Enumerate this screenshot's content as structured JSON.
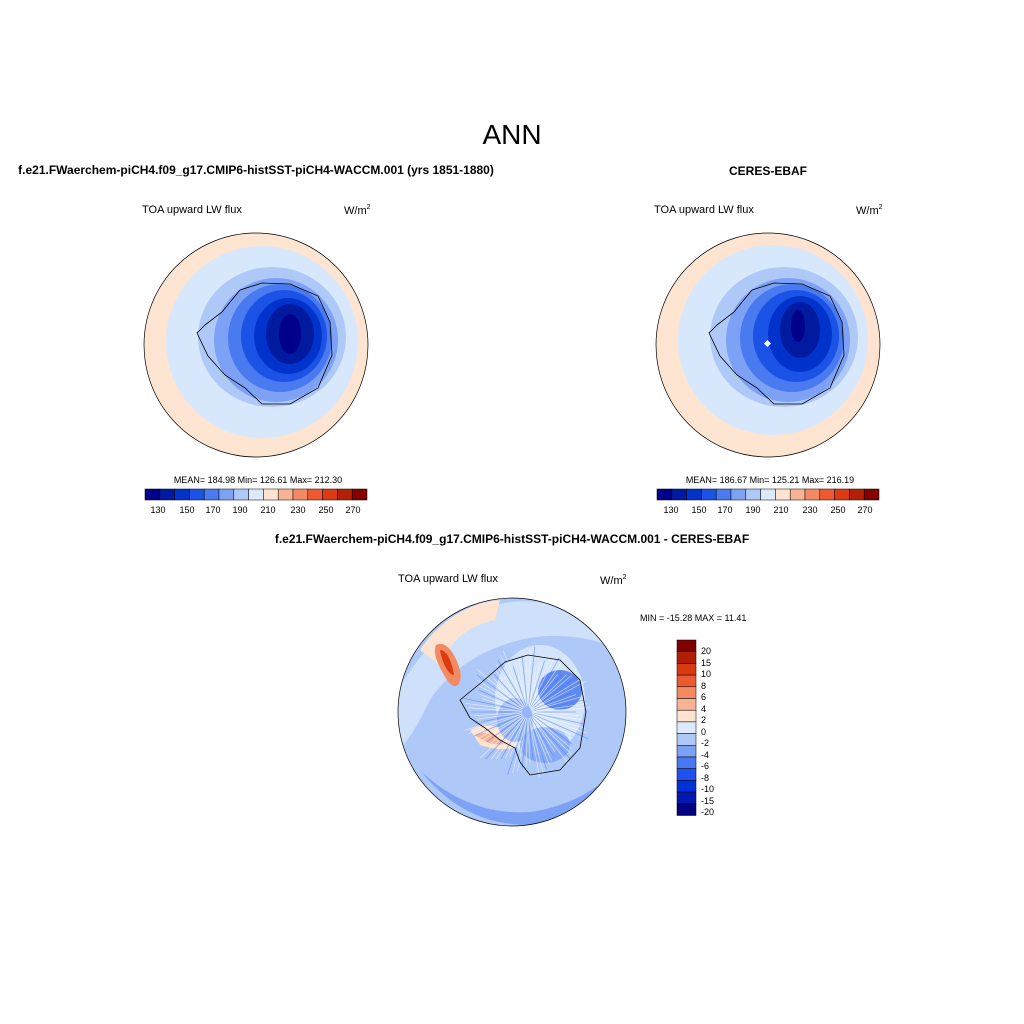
{
  "page": {
    "season": "ANN"
  },
  "colors": {
    "diverging_scale": [
      "#00008b",
      "#001aa0",
      "#0033cc",
      "#1a53e6",
      "#4a7af0",
      "#7da2f5",
      "#aec8f8",
      "#dbe9fc",
      "#fde3d0",
      "#f8b395",
      "#f38a62",
      "#ee5a30",
      "#dc3a12",
      "#b51f05",
      "#820000"
    ],
    "diff_scale": [
      "#000080",
      "#0018b0",
      "#0030d8",
      "#2050f0",
      "#4878f2",
      "#7ca0f6",
      "#aec8f8",
      "#ddeafc",
      "#fde3d0",
      "#f8b395",
      "#f38a62",
      "#ee5a30",
      "#d93a10",
      "#b01e04",
      "#800000"
    ],
    "coastline": "#000000",
    "ocean_light": "#cfe4fc",
    "ocean_warm": "#fde5d2"
  },
  "panels": {
    "model": {
      "title": "f.e21.FWaerchem-piCH4.f09_g17.CMIP6-histSST-piCH4-WACCM.001 (yrs 1851-1880)",
      "variable": "TOA upward LW flux",
      "units_base": "W/m",
      "units_exp": "2",
      "stats": "MEAN= 184.98  Min= 126.61  Max= 212.30",
      "colorbar_labels": [
        "130",
        "150",
        "170",
        "190",
        "210",
        "230",
        "250",
        "270"
      ]
    },
    "obs": {
      "title": "CERES-EBAF",
      "variable": "TOA upward LW flux",
      "units_base": "W/m",
      "units_exp": "2",
      "stats": "MEAN= 186.67  Min= 125.21  Max= 216.19",
      "colorbar_labels": [
        "130",
        "150",
        "170",
        "190",
        "210",
        "230",
        "250",
        "270"
      ]
    },
    "diff": {
      "title": "f.e21.FWaerchem-piCH4.f09_g17.CMIP6-histSST-piCH4-WACCM.001 - CERES-EBAF",
      "variable": "TOA upward LW flux",
      "units_base": "W/m",
      "units_exp": "2",
      "stats": "MIN = -15.28 MAX =  11.41",
      "colorbar_labels": [
        "20",
        "15",
        "10",
        "8",
        "6",
        "4",
        "2",
        "0",
        "-2",
        "-4",
        "-6",
        "-8",
        "-10",
        "-15",
        "-20"
      ]
    }
  }
}
